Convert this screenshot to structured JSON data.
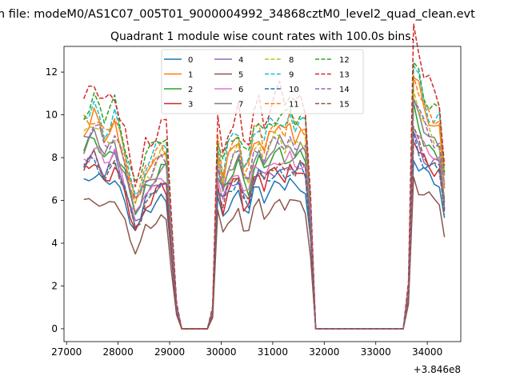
{
  "chart_data": {
    "type": "line",
    "suptitle": "m file: modeM0/AS1C07_005T01_9000004992_34868cztM0_level2_quad_clean.evt",
    "title": "Quadrant 1 module wise count rates with 100.0s bins.",
    "xlabel": "",
    "ylabel": "",
    "x_offset_label": "+3.846e8",
    "xlim": [
      26950,
      34650
    ],
    "ylim": [
      -0.6,
      13.2
    ],
    "x_ticks": [
      27000,
      28000,
      29000,
      30000,
      31000,
      32000,
      33000,
      34000
    ],
    "x_tick_labels": [
      "27000",
      "28000",
      "29000",
      "30000",
      "31000",
      "32000",
      "33000",
      "34000"
    ],
    "y_ticks": [
      0,
      2,
      4,
      6,
      8,
      10,
      12
    ],
    "y_tick_labels": [
      "0",
      "2",
      "4",
      "6",
      "8",
      "10",
      "12"
    ],
    "grid": false,
    "legend_position": "top-center",
    "legend_columns": 4,
    "x": [
      27334,
      27434,
      27534,
      27634,
      27734,
      27834,
      27934,
      28034,
      28134,
      28234,
      28334,
      28434,
      28534,
      28634,
      28734,
      28834,
      28934,
      29034,
      29134,
      29234,
      29334,
      29434,
      29534,
      29634,
      29734,
      29834,
      29934,
      30034,
      30134,
      30234,
      30334,
      30434,
      30534,
      30634,
      30734,
      30834,
      30934,
      31034,
      31134,
      31234,
      31334,
      31434,
      31534,
      31634,
      31734,
      31834,
      31934,
      32034,
      32134,
      32234,
      32334,
      32434,
      32534,
      32634,
      32734,
      32834,
      32934,
      33034,
      33134,
      33234,
      33334,
      33434,
      33534,
      33634,
      33734,
      33834,
      33934,
      34034,
      34134,
      34234,
      34334
    ],
    "profiles": [
      [
        1.0,
        1.03,
        1.06,
        1.02,
        0.96,
        0.99,
        1.03,
        0.95,
        0.86,
        0.74,
        0.66,
        0.7,
        0.8,
        0.82,
        0.86,
        0.9,
        0.88,
        0.5,
        0.12,
        0.0,
        0.0,
        0.0,
        0.0,
        0.0,
        0.0,
        0.1,
        0.86,
        0.78,
        0.84,
        0.88,
        0.92,
        0.82,
        0.78,
        0.92,
        0.96,
        0.9,
        0.94,
        0.97,
        0.98,
        0.95,
        0.99,
        0.96,
        0.98,
        0.95,
        0.6,
        0.0,
        0.0,
        0.0,
        0.0,
        0.0,
        0.0,
        0.0,
        0.0,
        0.0,
        0.0,
        0.0,
        0.0,
        0.0,
        0.0,
        0.0,
        0.0,
        0.0,
        0.0,
        0.2,
        1.18,
        1.1,
        1.05,
        1.02,
        1.0,
        0.98,
        0.74
      ],
      [
        1.0,
        1.02,
        1.05,
        1.0,
        0.95,
        0.98,
        1.02,
        0.93,
        0.85,
        0.72,
        0.62,
        0.68,
        0.79,
        0.8,
        0.85,
        0.89,
        0.87,
        0.48,
        0.11,
        0.0,
        0.0,
        0.0,
        0.0,
        0.0,
        0.0,
        0.09,
        0.9,
        0.74,
        0.86,
        0.9,
        0.94,
        0.78,
        0.8,
        0.94,
        0.98,
        0.88,
        0.96,
        0.99,
        1.01,
        0.96,
        1.02,
        0.97,
        1.0,
        0.96,
        0.58,
        0.0,
        0.0,
        0.0,
        0.0,
        0.0,
        0.0,
        0.0,
        0.0,
        0.0,
        0.0,
        0.0,
        0.0,
        0.0,
        0.0,
        0.0,
        0.0,
        0.0,
        0.0,
        0.19,
        1.2,
        1.12,
        1.08,
        1.04,
        1.01,
        1.0,
        0.72
      ]
    ],
    "series": [
      {
        "name": "0",
        "color": "#1f77b4",
        "dash": "solid",
        "scale": 6.9,
        "profile": 0,
        "spike": 0.0
      },
      {
        "name": "1",
        "color": "#ff7f0e",
        "dash": "solid",
        "scale": 9.4,
        "profile": 1,
        "spike": 0.05
      },
      {
        "name": "2",
        "color": "#2ca02c",
        "dash": "solid",
        "scale": 8.3,
        "profile": 0,
        "spike": 0.03
      },
      {
        "name": "3",
        "color": "#d62728",
        "dash": "solid",
        "scale": 7.4,
        "profile": 1,
        "spike": 0.0
      },
      {
        "name": "4",
        "color": "#9467bd",
        "dash": "solid",
        "scale": 7.7,
        "profile": 0,
        "spike": 0.0
      },
      {
        "name": "5",
        "color": "#8c564b",
        "dash": "solid",
        "scale": 5.9,
        "profile": 1,
        "spike": 0.0
      },
      {
        "name": "6",
        "color": "#e377c2",
        "dash": "solid",
        "scale": 8.0,
        "profile": 0,
        "spike": 0.02
      },
      {
        "name": "7",
        "color": "#7f7f7f",
        "dash": "solid",
        "scale": 8.6,
        "profile": 1,
        "spike": 0.02
      },
      {
        "name": "8",
        "color": "#bcbd22",
        "dash": "dashed",
        "scale": 9.0,
        "profile": 0,
        "spike": 0.04
      },
      {
        "name": "9",
        "color": "#17becf",
        "dash": "dashed",
        "scale": 9.8,
        "profile": 1,
        "spike": 0.05
      },
      {
        "name": "10",
        "color": "#1f77b4",
        "dash": "dashed",
        "scale": 7.5,
        "profile": 0,
        "spike": 0.0
      },
      {
        "name": "11",
        "color": "#ff7f0e",
        "dash": "dashed",
        "scale": 9.6,
        "profile": 1,
        "spike": 0.06
      },
      {
        "name": "12",
        "color": "#2ca02c",
        "dash": "dashed",
        "scale": 10.2,
        "profile": 0,
        "spike": 0.06
      },
      {
        "name": "13",
        "color": "#d62728",
        "dash": "dashed",
        "scale": 10.9,
        "profile": 1,
        "spike": 0.07
      },
      {
        "name": "14",
        "color": "#9467bd",
        "dash": "dashed",
        "scale": 8.9,
        "profile": 0,
        "spike": 0.04
      },
      {
        "name": "15",
        "color": "#8c564b",
        "dash": "dashed",
        "scale": 7.6,
        "profile": 1,
        "spike": 0.0
      }
    ]
  }
}
